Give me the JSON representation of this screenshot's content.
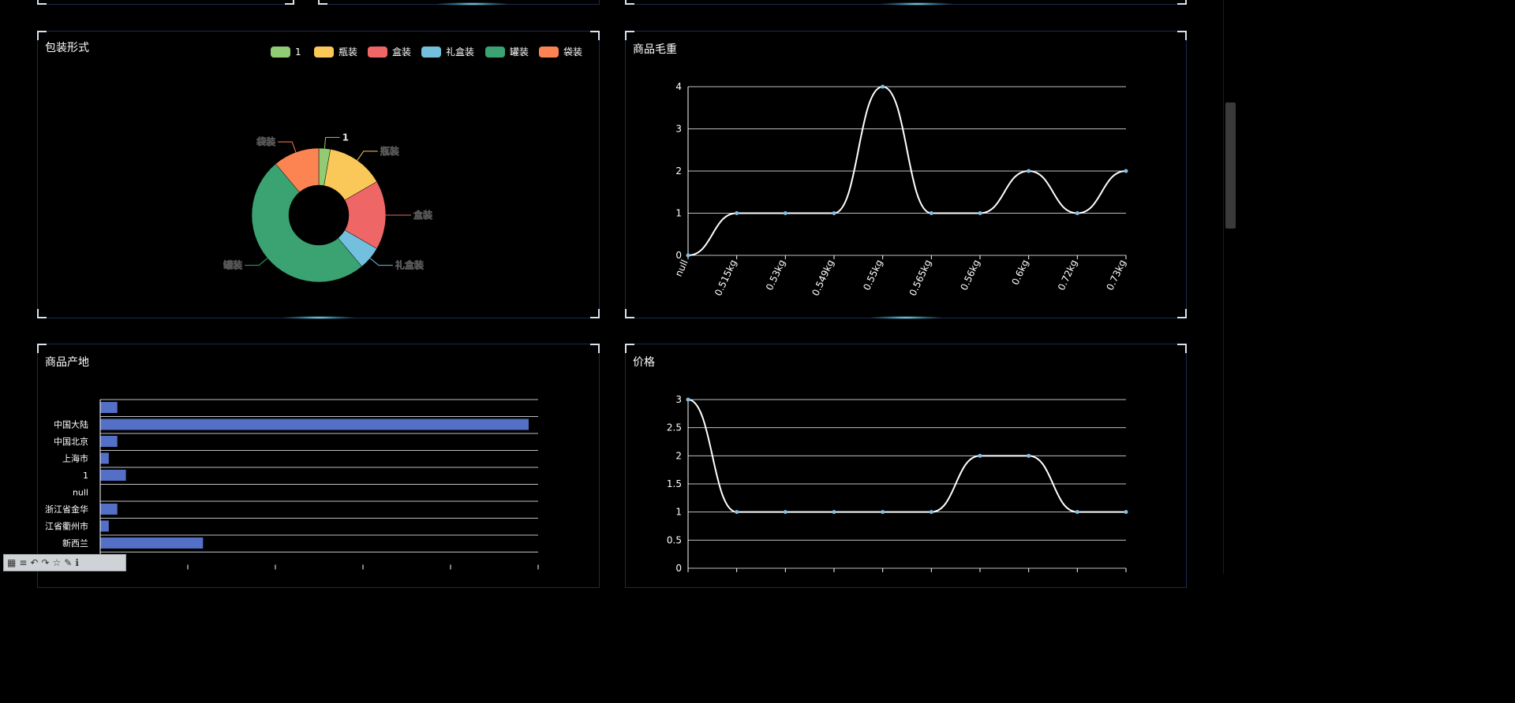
{
  "panels": {
    "packaging": {
      "title": "包装形式"
    },
    "weight": {
      "title": "商品毛重"
    },
    "origin": {
      "title": "商品产地"
    },
    "price": {
      "title": "价格"
    }
  },
  "chart_data": [
    {
      "id": "packaging",
      "type": "pie",
      "donut": true,
      "title": "包装形式",
      "legend_position": "top-right",
      "slices": [
        {
          "name": "1",
          "value": 1,
          "color": "#91cc75"
        },
        {
          "name": "瓶装",
          "value": 5,
          "color": "#fac858"
        },
        {
          "name": "盒装",
          "value": 6,
          "color": "#ee6666"
        },
        {
          "name": "礼盒装",
          "value": 2,
          "color": "#73c0de"
        },
        {
          "name": "罐装",
          "value": 18,
          "color": "#3ba272"
        },
        {
          "name": "袋装",
          "value": 4,
          "color": "#fc8452"
        }
      ]
    },
    {
      "id": "weight",
      "type": "line",
      "smooth": true,
      "title": "商品毛重",
      "categories": [
        "null",
        "0.515kg",
        "0.53kg",
        "0.549kg",
        "0.55kg",
        "0.565kg",
        "0.56kg",
        "0.6kg",
        "0.72kg",
        "0.73kg"
      ],
      "values": [
        0,
        1,
        1,
        1,
        4,
        1,
        1,
        2,
        1,
        2
      ],
      "ylim": [
        0,
        4
      ],
      "yticks": [
        0,
        1,
        2,
        3,
        4
      ],
      "grid": true
    },
    {
      "id": "origin",
      "type": "bar",
      "orientation": "horizontal",
      "title": "商品产地",
      "categories": [
        "",
        "中国大陆",
        "中国北京",
        "上海市",
        "1",
        "null",
        "浙江省金华",
        "江省衢州市",
        "新西兰"
      ],
      "values": [
        2,
        50,
        2,
        1,
        3,
        0,
        2,
        1,
        12
      ],
      "xlim": [
        0,
        50
      ],
      "color": "#5470c6",
      "grid": true
    },
    {
      "id": "price",
      "type": "line",
      "smooth": true,
      "title": "价格",
      "categories": [
        "",
        "",
        "",
        "",
        "",
        "",
        "",
        "",
        "",
        ""
      ],
      "values": [
        3,
        1,
        1,
        1,
        1,
        1,
        2,
        2,
        1,
        1
      ],
      "ylim": [
        0,
        3
      ],
      "yticks": [
        "0",
        "0.5",
        "1",
        "1.5",
        "2",
        "2.5",
        "3"
      ],
      "grid": true
    }
  ],
  "colors": {
    "line": "#ffffff",
    "point": "#7fc1e8",
    "grid": "#bfbfbf",
    "bar": "#5470c6"
  },
  "toolbar": {
    "icons": [
      "grid-icon",
      "text-icon",
      "undo-icon",
      "redo-icon",
      "star-icon",
      "pen-icon",
      "info-icon"
    ]
  }
}
